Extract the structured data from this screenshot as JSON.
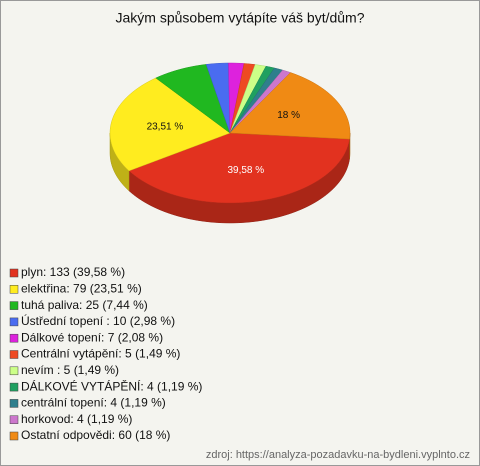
{
  "chart_data": {
    "type": "pie",
    "title": "Jakým spůsobem vytápíte váš byt/dům?",
    "categories": [
      "plyn: 133 (39,58 %)",
      "elektřina: 79 (23,51 %)",
      "tuhá paliva: 25 (7,44 %)",
      "Ústřední topení : 10 (2,98 %)",
      "Dálkové topení: 7 (2,08 %)",
      "Centrální vytápění: 5 (1,49 %)",
      "nevím : 5 (1,49 %)",
      "DÁLKOVÉ VYTÁPĚNÍ: 4 (1,19 %)",
      "centrální topení: 4 (1,19 %)",
      "horkovod: 4 (1,19 %)",
      "Ostatní odpovědi: 60 (18 %)"
    ],
    "values": [
      39.58,
      23.51,
      7.44,
      2.98,
      2.08,
      1.49,
      1.49,
      1.19,
      1.19,
      1.19,
      18
    ],
    "value_labels": [
      "39,58 %",
      "23,51 %",
      null,
      null,
      null,
      null,
      null,
      null,
      null,
      null,
      "18 %"
    ],
    "colors": [
      "#e2321f",
      "#ffec1f",
      "#20b820",
      "#4a6cf0",
      "#dd22dd",
      "#ee4a22",
      "#ccff88",
      "#1fa060",
      "#2f7f8c",
      "#cc77cc",
      "#f08a14"
    ],
    "source": "zdroj: https://analyza-pozadavku-na-bydleni.vyplnto.cz"
  }
}
